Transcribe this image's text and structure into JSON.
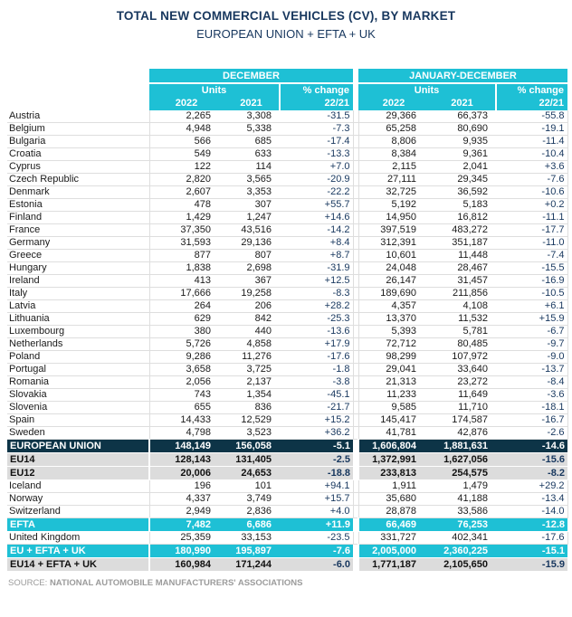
{
  "title": "TOTAL NEW COMMERCIAL VEHICLES (CV), BY MARKET",
  "subtitle": "EUROPEAN UNION + EFTA + UK",
  "source": {
    "prefix": "SOURCE:",
    "text": "NATIONAL AUTOMOBILE MANUFACTURERS' ASSOCIATIONS"
  },
  "colors": {
    "header_cyan": "#1ec0d5",
    "navy_row": "#0d3447",
    "gray_row": "#dcdcdc",
    "navy_text": "#17375e",
    "grid_gray": "#dedede",
    "source_gray": "#9b9b9b"
  },
  "table": {
    "column_groups": [
      "DECEMBER",
      "JANUARY-DECEMBER"
    ],
    "units_label": "Units",
    "pct_change_label": "% change",
    "year_cols": [
      "2022",
      "2021"
    ],
    "pct_sub_label": "22/21",
    "rows": [
      {
        "label": "Austria",
        "style": "normal",
        "values": [
          "2,265",
          "3,308",
          "-31.5",
          "29,366",
          "66,373",
          "-55.8"
        ]
      },
      {
        "label": "Belgium",
        "style": "normal",
        "values": [
          "4,948",
          "5,338",
          "-7.3",
          "65,258",
          "80,690",
          "-19.1"
        ]
      },
      {
        "label": "Bulgaria",
        "style": "normal",
        "values": [
          "566",
          "685",
          "-17.4",
          "8,806",
          "9,935",
          "-11.4"
        ]
      },
      {
        "label": "Croatia",
        "style": "normal",
        "values": [
          "549",
          "633",
          "-13.3",
          "8,384",
          "9,361",
          "-10.4"
        ]
      },
      {
        "label": "Cyprus",
        "style": "normal",
        "values": [
          "122",
          "114",
          "+7.0",
          "2,115",
          "2,041",
          "+3.6"
        ]
      },
      {
        "label": "Czech Republic",
        "style": "normal",
        "values": [
          "2,820",
          "3,565",
          "-20.9",
          "27,111",
          "29,345",
          "-7.6"
        ]
      },
      {
        "label": "Denmark",
        "style": "normal",
        "values": [
          "2,607",
          "3,353",
          "-22.2",
          "32,725",
          "36,592",
          "-10.6"
        ]
      },
      {
        "label": "Estonia",
        "style": "normal",
        "values": [
          "478",
          "307",
          "+55.7",
          "5,192",
          "5,183",
          "+0.2"
        ]
      },
      {
        "label": "Finland",
        "style": "normal",
        "values": [
          "1,429",
          "1,247",
          "+14.6",
          "14,950",
          "16,812",
          "-11.1"
        ]
      },
      {
        "label": "France",
        "style": "normal",
        "values": [
          "37,350",
          "43,516",
          "-14.2",
          "397,519",
          "483,272",
          "-17.7"
        ]
      },
      {
        "label": "Germany",
        "style": "normal",
        "values": [
          "31,593",
          "29,136",
          "+8.4",
          "312,391",
          "351,187",
          "-11.0"
        ]
      },
      {
        "label": "Greece",
        "style": "normal",
        "values": [
          "877",
          "807",
          "+8.7",
          "10,601",
          "11,448",
          "-7.4"
        ]
      },
      {
        "label": "Hungary",
        "style": "normal",
        "values": [
          "1,838",
          "2,698",
          "-31.9",
          "24,048",
          "28,467",
          "-15.5"
        ]
      },
      {
        "label": "Ireland",
        "style": "normal",
        "values": [
          "413",
          "367",
          "+12.5",
          "26,147",
          "31,457",
          "-16.9"
        ]
      },
      {
        "label": "Italy",
        "style": "normal",
        "values": [
          "17,666",
          "19,258",
          "-8.3",
          "189,690",
          "211,856",
          "-10.5"
        ]
      },
      {
        "label": "Latvia",
        "style": "normal",
        "values": [
          "264",
          "206",
          "+28.2",
          "4,357",
          "4,108",
          "+6.1"
        ]
      },
      {
        "label": "Lithuania",
        "style": "normal",
        "values": [
          "629",
          "842",
          "-25.3",
          "13,370",
          "11,532",
          "+15.9"
        ]
      },
      {
        "label": "Luxembourg",
        "style": "normal",
        "values": [
          "380",
          "440",
          "-13.6",
          "5,393",
          "5,781",
          "-6.7"
        ]
      },
      {
        "label": "Netherlands",
        "style": "normal",
        "values": [
          "5,726",
          "4,858",
          "+17.9",
          "72,712",
          "80,485",
          "-9.7"
        ]
      },
      {
        "label": "Poland",
        "style": "normal",
        "values": [
          "9,286",
          "11,276",
          "-17.6",
          "98,299",
          "107,972",
          "-9.0"
        ]
      },
      {
        "label": "Portugal",
        "style": "normal",
        "values": [
          "3,658",
          "3,725",
          "-1.8",
          "29,041",
          "33,640",
          "-13.7"
        ]
      },
      {
        "label": "Romania",
        "style": "normal",
        "values": [
          "2,056",
          "2,137",
          "-3.8",
          "21,313",
          "23,272",
          "-8.4"
        ]
      },
      {
        "label": "Slovakia",
        "style": "normal",
        "values": [
          "743",
          "1,354",
          "-45.1",
          "11,233",
          "11,649",
          "-3.6"
        ]
      },
      {
        "label": "Slovenia",
        "style": "normal",
        "values": [
          "655",
          "836",
          "-21.7",
          "9,585",
          "11,710",
          "-18.1"
        ]
      },
      {
        "label": "Spain",
        "style": "normal",
        "values": [
          "14,433",
          "12,529",
          "+15.2",
          "145,417",
          "174,587",
          "-16.7"
        ]
      },
      {
        "label": "Sweden",
        "style": "normal",
        "values": [
          "4,798",
          "3,523",
          "+36.2",
          "41,781",
          "42,876",
          "-2.6"
        ]
      },
      {
        "label": "EUROPEAN UNION",
        "style": "navy",
        "values": [
          "148,149",
          "156,058",
          "-5.1",
          "1,606,804",
          "1,881,631",
          "-14.6"
        ]
      },
      {
        "label": "EU14",
        "style": "gray",
        "values": [
          "128,143",
          "131,405",
          "-2.5",
          "1,372,991",
          "1,627,056",
          "-15.6"
        ]
      },
      {
        "label": "EU12",
        "style": "gray",
        "values": [
          "20,006",
          "24,653",
          "-18.8",
          "233,813",
          "254,575",
          "-8.2"
        ]
      },
      {
        "label": "Iceland",
        "style": "normal",
        "values": [
          "196",
          "101",
          "+94.1",
          "1,911",
          "1,479",
          "+29.2"
        ]
      },
      {
        "label": "Norway",
        "style": "normal",
        "values": [
          "4,337",
          "3,749",
          "+15.7",
          "35,680",
          "41,188",
          "-13.4"
        ]
      },
      {
        "label": "Switzerland",
        "style": "normal",
        "values": [
          "2,949",
          "2,836",
          "+4.0",
          "28,878",
          "33,586",
          "-14.0"
        ]
      },
      {
        "label": "EFTA",
        "style": "cyan",
        "values": [
          "7,482",
          "6,686",
          "+11.9",
          "66,469",
          "76,253",
          "-12.8"
        ]
      },
      {
        "label": "United Kingdom",
        "style": "normal",
        "values": [
          "25,359",
          "33,153",
          "-23.5",
          "331,727",
          "402,341",
          "-17.6"
        ]
      },
      {
        "label": "EU + EFTA + UK",
        "style": "cyan",
        "values": [
          "180,990",
          "195,897",
          "-7.6",
          "2,005,000",
          "2,360,225",
          "-15.1"
        ]
      },
      {
        "label": "EU14 + EFTA + UK",
        "style": "gray",
        "values": [
          "160,984",
          "171,244",
          "-6.0",
          "1,771,187",
          "2,105,650",
          "-15.9"
        ]
      }
    ]
  }
}
